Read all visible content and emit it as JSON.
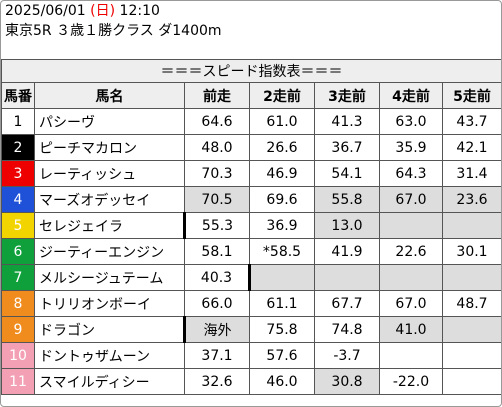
{
  "header": {
    "date": "2025/06/01",
    "weekday_open": "(",
    "weekday": "日",
    "weekday_close": ")",
    "time": "12:10",
    "race": "東京5R ３歳１勝クラス ダ1400m"
  },
  "table": {
    "title": "＝＝＝スピード指数表＝＝＝",
    "columns": [
      "馬番",
      "馬名",
      "前走",
      "2走前",
      "3走前",
      "4走前",
      "5走前"
    ],
    "rows": [
      {
        "number": "1",
        "name": "パシーヴ",
        "indices": [
          "64.6",
          "61.0",
          "41.3",
          "63.0",
          "43.7"
        ]
      },
      {
        "number": "2",
        "name": "ピーチマカロン",
        "indices": [
          "48.0",
          "26.6",
          "36.7",
          "35.9",
          "42.1"
        ]
      },
      {
        "number": "3",
        "name": "レーティッシュ",
        "indices": [
          "70.3",
          "46.9",
          "54.1",
          "64.3",
          "31.4"
        ]
      },
      {
        "number": "4",
        "name": "マーズオデッセイ",
        "indices": [
          "70.5",
          "69.6",
          "55.8",
          "67.0",
          "23.6"
        ]
      },
      {
        "number": "5",
        "name": "セレジェイラ",
        "indices": [
          "55.3",
          "36.9",
          "13.0"
        ]
      },
      {
        "number": "6",
        "name": "ジーティーエンジン",
        "indices": [
          "58.1",
          "*58.5",
          "41.9",
          "22.6",
          "30.1"
        ]
      },
      {
        "number": "7",
        "name": "メルシージュテーム",
        "indices": [
          "40.3"
        ]
      },
      {
        "number": "8",
        "name": "トリリオンボーイ",
        "indices": [
          "66.0",
          "61.1",
          "67.7",
          "67.0",
          "48.7"
        ]
      },
      {
        "number": "9",
        "name": "ドラゴン",
        "indices": [
          "海外",
          "75.8",
          "74.8",
          "41.0"
        ]
      },
      {
        "number": "10",
        "name": "ドントゥザムーン",
        "indices": [
          "37.1",
          "57.6",
          "-3.7"
        ]
      },
      {
        "number": "11",
        "name": "スマイルディシー",
        "indices": [
          "32.6",
          "46.0",
          "30.8",
          "-22.0"
        ]
      }
    ]
  }
}
